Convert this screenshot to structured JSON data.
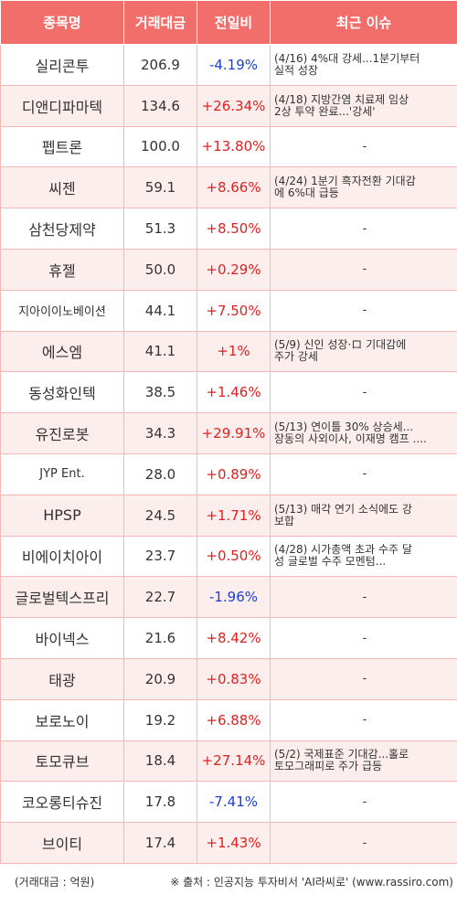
{
  "table": {
    "headers": [
      "종목명",
      "거래대금",
      "전일비",
      "최근 이슈"
    ],
    "rows": [
      {
        "name": "실리콘투",
        "value": "206.9",
        "change": "-4.19%",
        "issue": "(4/16) 4%대 강세...1분기부터\n 실적 성장"
      },
      {
        "name": "디앤디파마텍",
        "value": "134.6",
        "change": "+26.34%",
        "issue": "(4/18) 지방간염 치료제 임상\n2상 투약 완료...'강세'"
      },
      {
        "name": "펩트론",
        "value": "100.0",
        "change": "+13.80%",
        "issue": "-"
      },
      {
        "name": "씨젠",
        "value": "59.1",
        "change": "+8.66%",
        "issue": "(4/24) 1분기 흑자전환 기대감\n에 6%대 급등"
      },
      {
        "name": "삼천당제약",
        "value": "51.3",
        "change": "+8.50%",
        "issue": "-"
      },
      {
        "name": "휴젤",
        "value": "50.0",
        "change": "+0.29%",
        "issue": "-"
      },
      {
        "name": "지아이이노베이션",
        "value": "44.1",
        "change": "+7.50%",
        "issue": "-"
      },
      {
        "name": "에스엠",
        "value": "41.1",
        "change": "+1%",
        "issue": "(5/9) 신인 성장·ロ 기대감에\n주가 강세"
      },
      {
        "name": "동성화인텍",
        "value": "38.5",
        "change": "+1.46%",
        "issue": "-"
      },
      {
        "name": "유진로봇",
        "value": "34.3",
        "change": "+29.91%",
        "issue": "(5/13) 연이틀 30% 상승세...\n장동의 사외이사, 이재명 캠프 ...."
      },
      {
        "name": "JYP Ent.",
        "value": "28.0",
        "change": "+0.89%",
        "issue": "-"
      },
      {
        "name": "HPSP",
        "value": "24.5",
        "change": "+1.71%",
        "issue": "(5/13) 매각 연기 소식에도 강\n보합"
      },
      {
        "name": "비에이치아이",
        "value": "23.7",
        "change": "+0.50%",
        "issue": "(4/28) 시가총액 초과 수주 달\n성 글로벌 수주 모멘텀..."
      },
      {
        "name": "글로벌텍스프리",
        "value": "22.7",
        "change": "-1.96%",
        "issue": "-"
      },
      {
        "name": "바이넥스",
        "value": "21.6",
        "change": "+8.42%",
        "issue": "-"
      },
      {
        "name": "태광",
        "value": "20.9",
        "change": "+0.83%",
        "issue": "-"
      },
      {
        "name": "보로노이",
        "value": "19.2",
        "change": "+6.88%",
        "issue": "-"
      },
      {
        "name": "토모큐브",
        "value": "18.4",
        "change": "+27.14%",
        "issue": "(5/2) 국제표준 기대감...홀로\n토모그래피로 주가 급등"
      },
      {
        "name": "코오롱티슈진",
        "value": "17.8",
        "change": "-7.41%",
        "issue": "-"
      },
      {
        "name": "브이티",
        "value": "17.4",
        "change": "+1.43%",
        "issue": "-"
      }
    ]
  },
  "footer": {
    "unit_note": "(거래대금 : 억원)",
    "source_note": "※ 출처 : 인공지능 투자비서 'AI라씨로' (www.rassiro.com)"
  },
  "colors": {
    "header_bg": "#f26e6a",
    "alt_row_bg": "#fdeeee",
    "border": "#f0b9b6",
    "positive": "#e02020",
    "negative": "#1a3fd3"
  }
}
